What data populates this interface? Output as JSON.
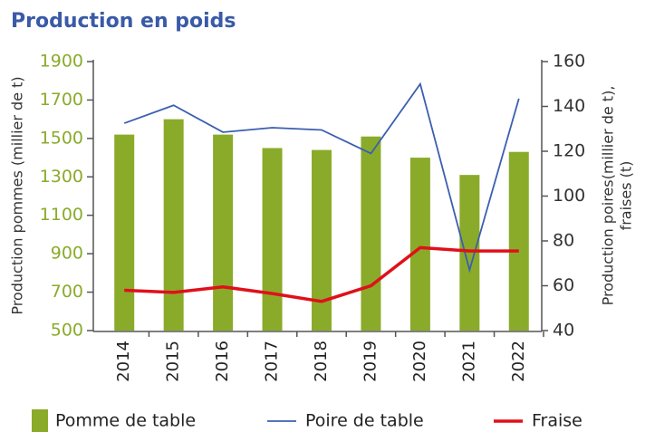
{
  "chart_data": {
    "type": "bar-line",
    "title": "Production en poids",
    "ylabel": "Production pommes (millier de t)",
    "y2label": [
      "Production poires(millier de t),",
      "fraises (t)"
    ],
    "categories": [
      "2014",
      "2015",
      "2016",
      "2017",
      "2018",
      "2019",
      "2020",
      "2021",
      "2022"
    ],
    "series": [
      {
        "name": "Pomme de table",
        "color": "#8aab2a",
        "type": "bar",
        "axis": "y",
        "values": [
          1520,
          1600,
          1520,
          1450,
          1440,
          1510,
          1400,
          1310,
          1430
        ]
      },
      {
        "name": "Poire de table",
        "color": "#3b5fb0",
        "type": "line",
        "axis": "y2",
        "values": [
          132.5,
          140.5,
          128.5,
          130.5,
          129.5,
          119,
          150,
          67,
          143.5
        ]
      },
      {
        "name": "Fraise",
        "color": "#e0101a",
        "type": "line",
        "axis": "y2",
        "values": [
          58,
          57,
          59.5,
          56.5,
          53,
          60,
          77,
          75.5,
          75.5
        ]
      }
    ],
    "ylim": [
      500,
      1900
    ],
    "yticks": [
      500,
      700,
      900,
      1100,
      1300,
      1500,
      1700,
      1900
    ],
    "y2lim": [
      40,
      160
    ],
    "y2ticks": [
      40,
      60,
      80,
      100,
      120,
      140,
      160
    ],
    "legend": "bottom"
  }
}
